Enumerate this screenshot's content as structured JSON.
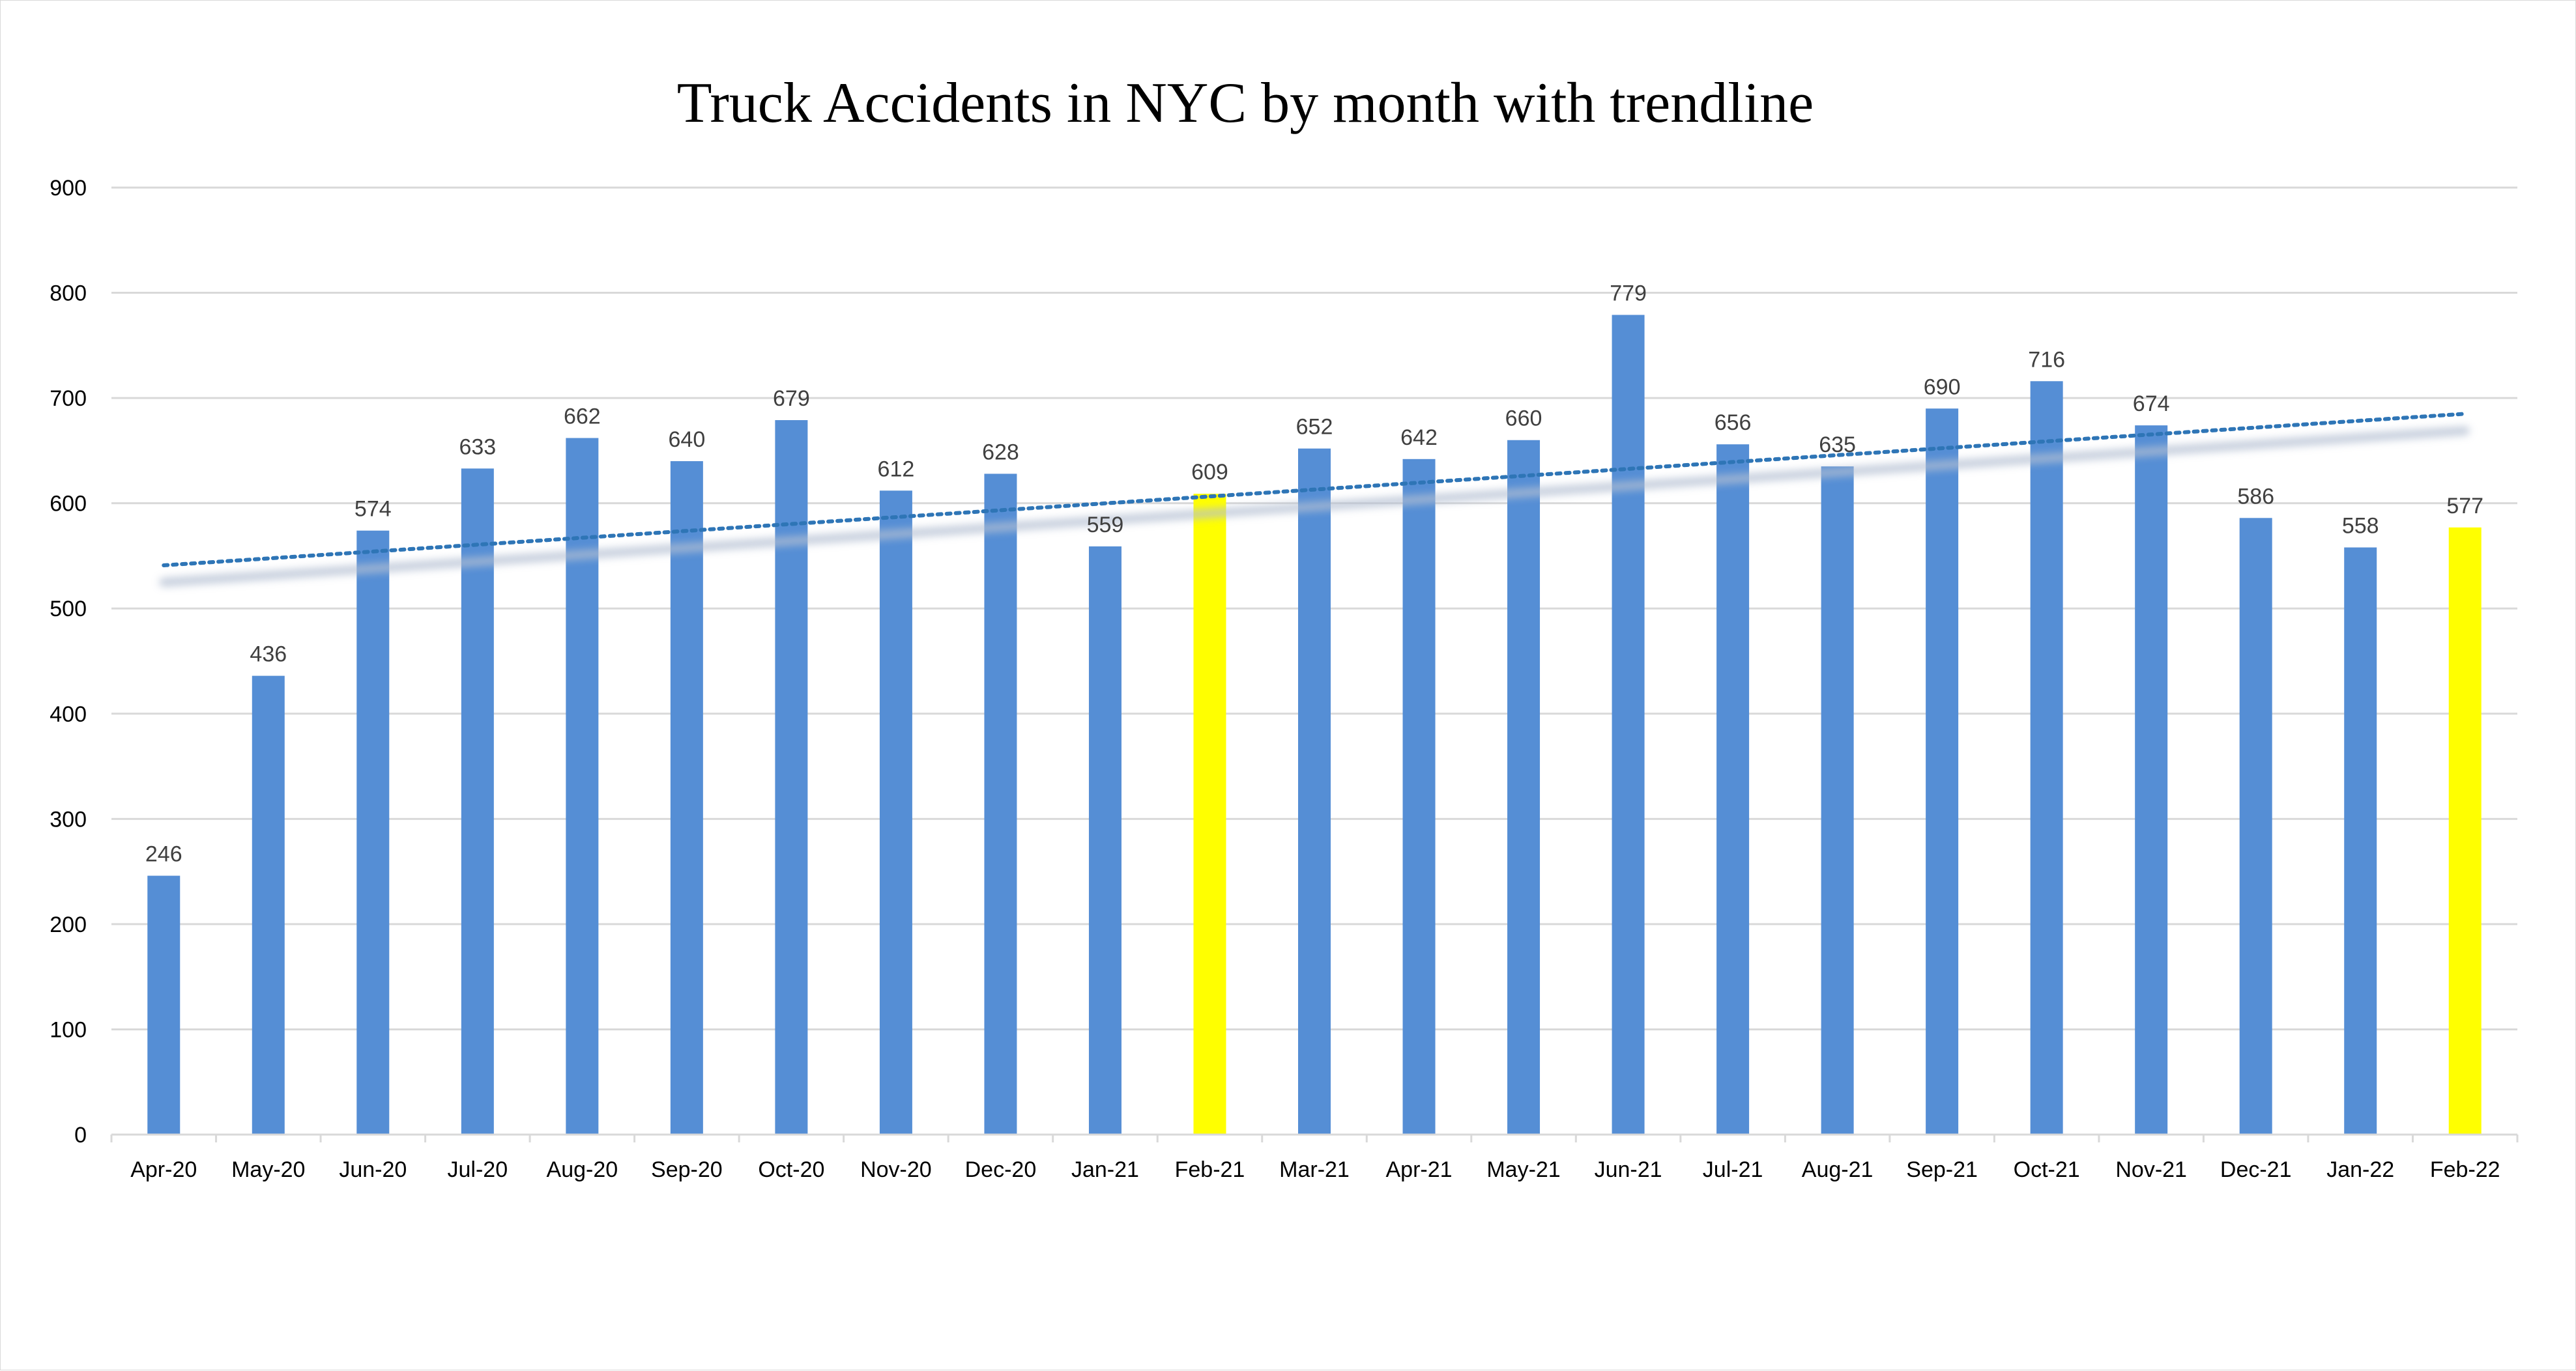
{
  "chart_data": {
    "type": "bar",
    "title": "Truck Accidents in NYC by month with trendline",
    "xlabel": "",
    "ylabel": "",
    "ylim": [
      0,
      900
    ],
    "yticks": [
      0,
      100,
      200,
      300,
      400,
      500,
      600,
      700,
      800,
      900
    ],
    "grid": true,
    "legend": "none",
    "categories": [
      "Apr-20",
      "May-20",
      "Jun-20",
      "Jul-20",
      "Aug-20",
      "Sep-20",
      "Oct-20",
      "Nov-20",
      "Dec-20",
      "Jan-21",
      "Feb-21",
      "Mar-21",
      "Apr-21",
      "May-21",
      "Jun-21",
      "Jul-21",
      "Aug-21",
      "Sep-21",
      "Oct-21",
      "Nov-21",
      "Dec-21",
      "Jan-22",
      "Feb-22"
    ],
    "values": [
      246,
      436,
      574,
      633,
      662,
      640,
      679,
      612,
      628,
      559,
      609,
      652,
      642,
      660,
      779,
      656,
      635,
      690,
      716,
      674,
      586,
      558,
      577
    ],
    "highlighted": [
      "Feb-21",
      "Feb-22"
    ],
    "trendline": {
      "type": "linear",
      "style": "dotted",
      "start": 541,
      "end": 685
    },
    "colors": {
      "bar": "#558ed5",
      "highlight": "#ffff00",
      "trendline": "#2e75b6",
      "trend_shadow": "#b4bfd2",
      "grid": "#d9d9d9"
    }
  }
}
